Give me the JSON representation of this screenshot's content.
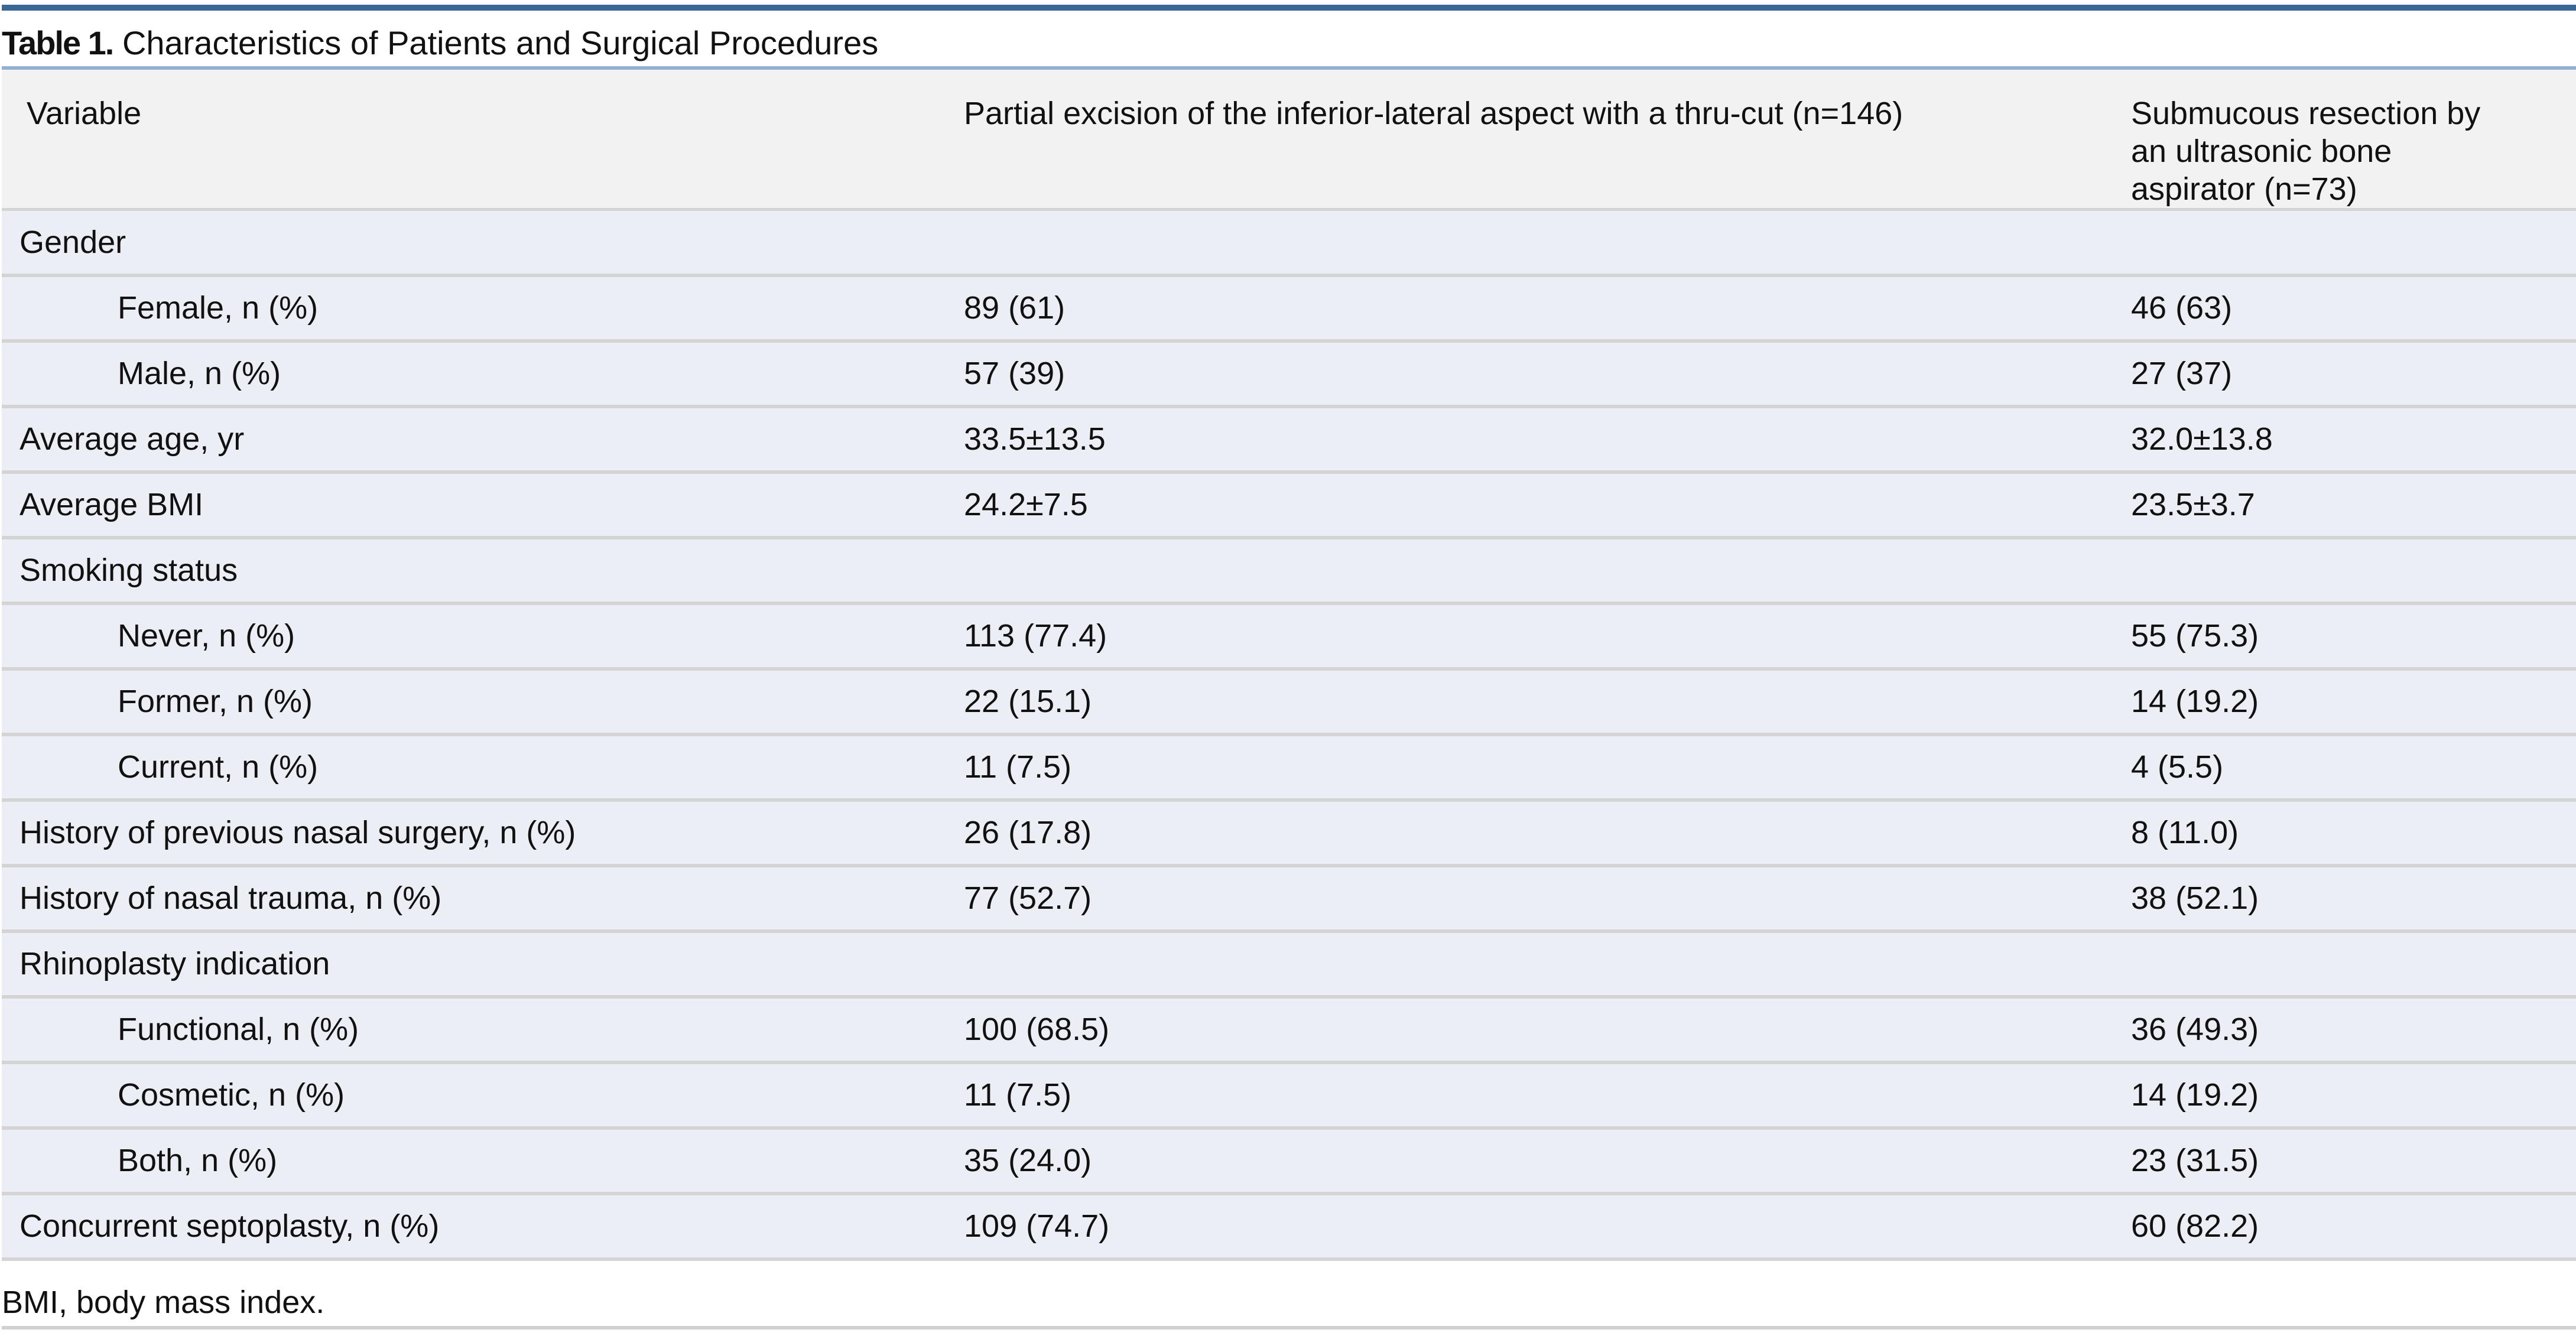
{
  "title": {
    "label": "Table 1.",
    "text": "Characteristics of Patients and Surgical Procedures"
  },
  "columns": [
    "Variable",
    "Partial excision of the inferior-lateral aspect with a thru-cut (n=146)",
    "Submucous resection by an ultrasonic bone aspirator (n=73)"
  ],
  "rows": [
    {
      "label": "Gender",
      "a": "",
      "b": "",
      "indent": false
    },
    {
      "label": "Female, n (%)",
      "a": "89 (61)",
      "b": "46 (63)",
      "indent": true
    },
    {
      "label": "Male, n (%)",
      "a": "57 (39)",
      "b": "27 (37)",
      "indent": true
    },
    {
      "label": "Average age, yr",
      "a": "33.5±13.5",
      "b": "32.0±13.8",
      "indent": false
    },
    {
      "label": "Average BMI",
      "a": "24.2±7.5",
      "b": "23.5±3.7",
      "indent": false
    },
    {
      "label": "Smoking status",
      "a": "",
      "b": "",
      "indent": false
    },
    {
      "label": "Never, n (%)",
      "a": "113 (77.4)",
      "b": "55 (75.3)",
      "indent": true
    },
    {
      "label": "Former, n (%)",
      "a": "22 (15.1)",
      "b": "14 (19.2)",
      "indent": true
    },
    {
      "label": "Current, n (%)",
      "a": "11 (7.5)",
      "b": "4 (5.5)",
      "indent": true
    },
    {
      "label": "History of previous nasal surgery, n (%)",
      "a": "26 (17.8)",
      "b": "8 (11.0)",
      "indent": false
    },
    {
      "label": "History of nasal trauma, n (%)",
      "a": "77 (52.7)",
      "b": "38 (52.1)",
      "indent": false
    },
    {
      "label": "Rhinoplasty indication",
      "a": "",
      "b": "",
      "indent": false
    },
    {
      "label": "Functional, n (%)",
      "a": "100 (68.5)",
      "b": "36 (49.3)",
      "indent": true
    },
    {
      "label": "Cosmetic, n (%)",
      "a": "11 (7.5)",
      "b": "14 (19.2)",
      "indent": true
    },
    {
      "label": "Both, n (%)",
      "a": "35 (24.0)",
      "b": "23 (31.5)",
      "indent": true
    },
    {
      "label": "Concurrent septoplasty, n (%)",
      "a": "109 (74.7)",
      "b": "60 (82.2)",
      "indent": false
    }
  ],
  "footnote": "BMI, body mass index.",
  "colors": {
    "top_rule": "#3a6796",
    "header_rule": "#93b0d4",
    "header_bg": "#f2f2f2",
    "row_bg": "#ebeef5",
    "row_border": "#d4d4d4"
  }
}
